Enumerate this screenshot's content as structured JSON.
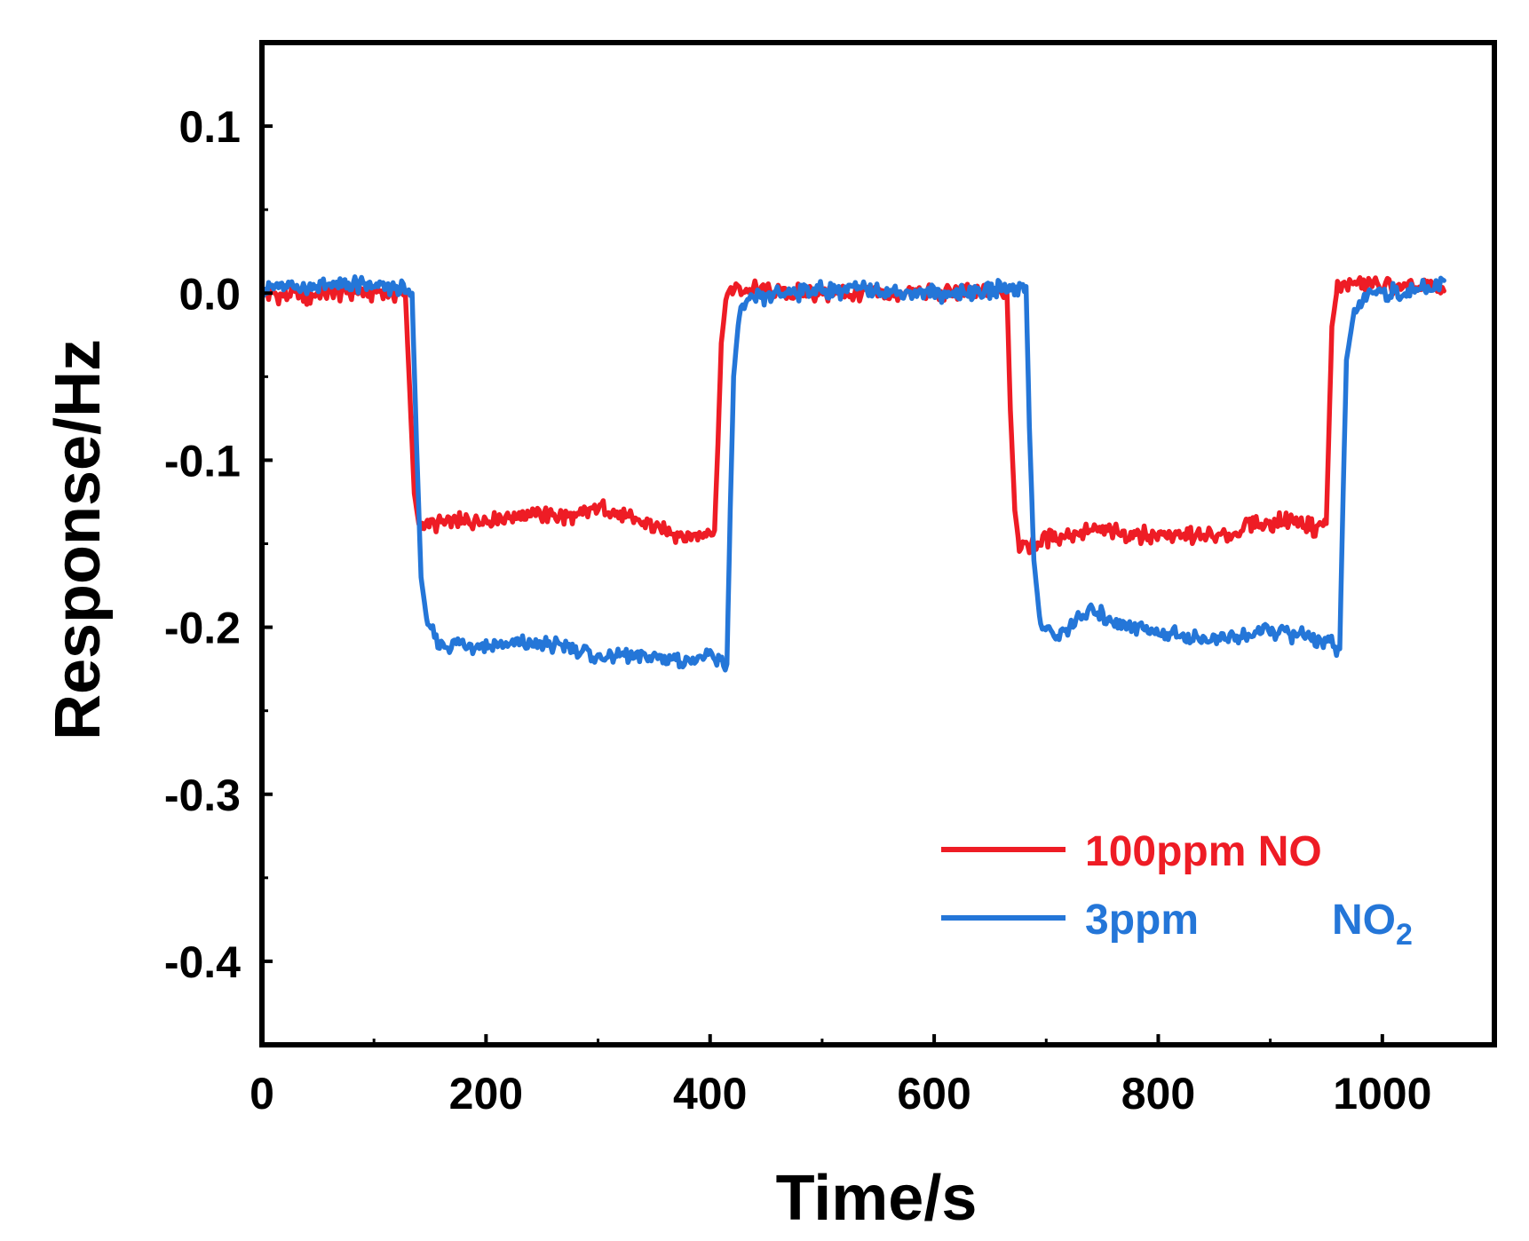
{
  "chart_data": {
    "type": "line",
    "title": "",
    "xlabel": "Time/s",
    "ylabel": "Response/Hz",
    "xlim": [
      0,
      1100
    ],
    "ylim": [
      -0.45,
      0.15
    ],
    "x_ticks": [
      0,
      200,
      400,
      600,
      800,
      1000
    ],
    "x_tick_labels": [
      "0",
      "200",
      "400",
      "600",
      "800",
      "1000"
    ],
    "x_minor_ticks": [
      100,
      300,
      500,
      700,
      900
    ],
    "y_ticks": [
      0.1,
      0.0,
      -0.1,
      -0.2,
      -0.3,
      -0.4
    ],
    "y_tick_labels": [
      "0.1",
      "0.0",
      "-0.1",
      "-0.2",
      "-0.3",
      "-0.4"
    ],
    "y_minor_ticks": [
      0.05,
      -0.05,
      -0.15,
      -0.25,
      -0.35
    ],
    "grid": false,
    "legend_position": "bottom-right",
    "series": [
      {
        "name": "100ppm NO",
        "legend_main": "100ppm NO",
        "color": "#ee1c25",
        "points": [
          [
            0,
            0.0
          ],
          [
            40,
            -0.002
          ],
          [
            80,
            0.001
          ],
          [
            120,
            0.0
          ],
          [
            128,
            0.0
          ],
          [
            132,
            -0.06
          ],
          [
            136,
            -0.12
          ],
          [
            140,
            -0.138
          ],
          [
            160,
            -0.138
          ],
          [
            200,
            -0.135
          ],
          [
            240,
            -0.132
          ],
          [
            280,
            -0.135
          ],
          [
            300,
            -0.128
          ],
          [
            320,
            -0.133
          ],
          [
            360,
            -0.142
          ],
          [
            380,
            -0.146
          ],
          [
            404,
            -0.142
          ],
          [
            407,
            -0.09
          ],
          [
            410,
            -0.03
          ],
          [
            414,
            -0.005
          ],
          [
            420,
            0.003
          ],
          [
            440,
            0.002
          ],
          [
            480,
            0.0
          ],
          [
            520,
            0.0
          ],
          [
            560,
            -0.001
          ],
          [
            600,
            0.0
          ],
          [
            640,
            0.001
          ],
          [
            665,
            0.0
          ],
          [
            668,
            -0.07
          ],
          [
            672,
            -0.13
          ],
          [
            676,
            -0.152
          ],
          [
            700,
            -0.147
          ],
          [
            740,
            -0.142
          ],
          [
            780,
            -0.144
          ],
          [
            820,
            -0.145
          ],
          [
            860,
            -0.146
          ],
          [
            880,
            -0.139
          ],
          [
            920,
            -0.136
          ],
          [
            940,
            -0.141
          ],
          [
            950,
            -0.138
          ],
          [
            952,
            -0.09
          ],
          [
            955,
            -0.02
          ],
          [
            960,
            0.004
          ],
          [
            980,
            0.006
          ],
          [
            1000,
            0.004
          ],
          [
            1030,
            0.003
          ],
          [
            1055,
            0.003
          ]
        ]
      },
      {
        "name": "3ppm NO2",
        "legend_main": "3ppm",
        "legend_gas": "NO",
        "legend_sub": "2",
        "color": "#2476d8",
        "points": [
          [
            0,
            0.003
          ],
          [
            40,
            0.004
          ],
          [
            80,
            0.005
          ],
          [
            120,
            0.003
          ],
          [
            134,
            0.0
          ],
          [
            138,
            -0.09
          ],
          [
            142,
            -0.17
          ],
          [
            148,
            -0.2
          ],
          [
            160,
            -0.21
          ],
          [
            200,
            -0.211
          ],
          [
            240,
            -0.21
          ],
          [
            280,
            -0.212
          ],
          [
            300,
            -0.218
          ],
          [
            340,
            -0.217
          ],
          [
            380,
            -0.22
          ],
          [
            400,
            -0.218
          ],
          [
            415,
            -0.222
          ],
          [
            418,
            -0.13
          ],
          [
            421,
            -0.05
          ],
          [
            426,
            -0.012
          ],
          [
            435,
            -0.005
          ],
          [
            460,
            0.0
          ],
          [
            500,
            0.002
          ],
          [
            540,
            0.002
          ],
          [
            580,
            0.0
          ],
          [
            620,
            0.0
          ],
          [
            660,
            0.003
          ],
          [
            682,
            0.004
          ],
          [
            685,
            -0.08
          ],
          [
            689,
            -0.16
          ],
          [
            695,
            -0.2
          ],
          [
            710,
            -0.205
          ],
          [
            730,
            -0.195
          ],
          [
            740,
            -0.19
          ],
          [
            770,
            -0.198
          ],
          [
            800,
            -0.203
          ],
          [
            840,
            -0.207
          ],
          [
            870,
            -0.206
          ],
          [
            900,
            -0.202
          ],
          [
            940,
            -0.206
          ],
          [
            962,
            -0.213
          ],
          [
            965,
            -0.12
          ],
          [
            968,
            -0.04
          ],
          [
            975,
            -0.01
          ],
          [
            990,
            0.001
          ],
          [
            1020,
            0.0
          ],
          [
            1045,
            0.003
          ],
          [
            1055,
            0.008
          ]
        ]
      }
    ]
  }
}
